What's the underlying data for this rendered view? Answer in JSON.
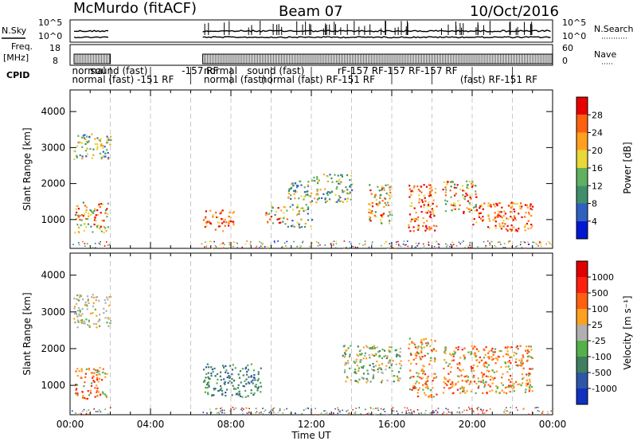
{
  "header": {
    "station": "McMurdo (fitACF)",
    "beam": "Beam 07",
    "date": "10/Oct/2016"
  },
  "meta_panels": {
    "nsky_label": "N.Sky",
    "nsky_ticks": [
      "10^5",
      "10^0"
    ],
    "nsearch_label": "N.Search",
    "nsearch_ticks": [
      "10^5",
      "10^0"
    ],
    "freq_label": "Freq.",
    "freq_unit": "[MHz]",
    "freq_ticks": [
      "18",
      "8"
    ],
    "nave_label": "Nave",
    "nave_ticks": [
      "60",
      "0"
    ],
    "cpid_label": "CPID"
  },
  "cpid_rows": {
    "row1": [
      {
        "text": "normal",
        "t": 0.1
      },
      {
        "text": "sound (fast)",
        "t": 1.0
      },
      {
        "text": "-157  RF",
        "t": 5.55
      },
      {
        "text": "normal",
        "t": 6.65
      },
      {
        "text": "sound (fast)",
        "t": 8.8
      },
      {
        "text": "rF-157  RF-157  RF-157  RF",
        "t": 13.3
      }
    ],
    "row2": [
      {
        "text": "normal (fast)  -151  RF",
        "t": 0.1
      },
      {
        "text": "normal (fast)",
        "t": 6.65
      },
      {
        "text": "normal (fast) RF-151  RF",
        "t": 9.5
      },
      {
        "text": "(fast) RF-151  RF",
        "t": 19.4
      }
    ]
  },
  "chart_data": [
    {
      "type": "heatmap",
      "name": "power",
      "xlabel": "",
      "ylabel": "Slant Range [km]",
      "xlim": [
        0,
        24
      ],
      "ylim": [
        200,
        4600
      ],
      "yticks": [
        1000,
        2000,
        3000,
        4000
      ],
      "colorbar": {
        "label": "Power [dB]",
        "ticks": [
          "28",
          "24",
          "20",
          "16",
          "12",
          "8",
          "4"
        ],
        "colors": [
          "#0018d0",
          "#2f5fc0",
          "#3f8f6b",
          "#5fb05f",
          "#e8d838",
          "#ffa020",
          "#ff6010",
          "#e80000"
        ]
      },
      "scatter_blobs": [
        {
          "t": [
            0.15,
            2.0
          ],
          "r": [
            2700,
            3400
          ],
          "level": "mid"
        },
        {
          "t": [
            0.2,
            1.9
          ],
          "r": [
            650,
            1500
          ],
          "level": "high"
        },
        {
          "t": [
            6.6,
            8.2
          ],
          "r": [
            700,
            1300
          ],
          "level": "veryhigh"
        },
        {
          "t": [
            9.7,
            10.8
          ],
          "r": [
            900,
            1400
          ],
          "level": "high"
        },
        {
          "t": [
            10.8,
            12.0
          ],
          "r": [
            800,
            2100
          ],
          "level": "mid"
        },
        {
          "t": [
            12.0,
            14.0
          ],
          "r": [
            1500,
            2300
          ],
          "level": "mid"
        },
        {
          "t": [
            14.8,
            16.0
          ],
          "r": [
            900,
            2000
          ],
          "level": "high"
        },
        {
          "t": [
            16.8,
            18.2
          ],
          "r": [
            700,
            2000
          ],
          "level": "veryhigh"
        },
        {
          "t": [
            18.5,
            20.2
          ],
          "r": [
            1200,
            2100
          ],
          "level": "high"
        },
        {
          "t": [
            20.0,
            23.0
          ],
          "r": [
            700,
            1500
          ],
          "level": "veryhigh"
        }
      ]
    },
    {
      "type": "heatmap",
      "name": "velocity",
      "xlabel": "Time UT",
      "ylabel": "Slant Range [km]",
      "xlim": [
        0,
        24
      ],
      "ylim": [
        200,
        4600
      ],
      "yticks": [
        1000,
        2000,
        3000,
        4000
      ],
      "xticks": [
        "00:00",
        "04:00",
        "08:00",
        "12:00",
        "16:00",
        "20:00",
        "00:00"
      ],
      "colorbar": {
        "label": "Velocity [m s⁻¹]",
        "ticks": [
          "1000",
          "500",
          "100",
          "25",
          "-25",
          "-100",
          "-500",
          "-1000"
        ],
        "colors": [
          "#1030c0",
          "#2f55a8",
          "#3f7f5f",
          "#55b04a",
          "#b0b0b0",
          "#ffa020",
          "#ff6010",
          "#ff2010",
          "#e00000"
        ]
      },
      "scatter_blobs": [
        {
          "t": [
            0.15,
            2.0
          ],
          "r": [
            2600,
            3500
          ],
          "level": "grey"
        },
        {
          "t": [
            0.2,
            1.9
          ],
          "r": [
            650,
            1500
          ],
          "level": "orange"
        },
        {
          "t": [
            6.6,
            9.5
          ],
          "r": [
            700,
            1600
          ],
          "level": "green"
        },
        {
          "t": [
            13.5,
            16.5
          ],
          "r": [
            1100,
            2100
          ],
          "level": "lightgreen"
        },
        {
          "t": [
            16.8,
            18.2
          ],
          "r": [
            700,
            2300
          ],
          "level": "orange"
        },
        {
          "t": [
            18.5,
            23.0
          ],
          "r": [
            800,
            2100
          ],
          "level": "orange"
        }
      ]
    }
  ]
}
